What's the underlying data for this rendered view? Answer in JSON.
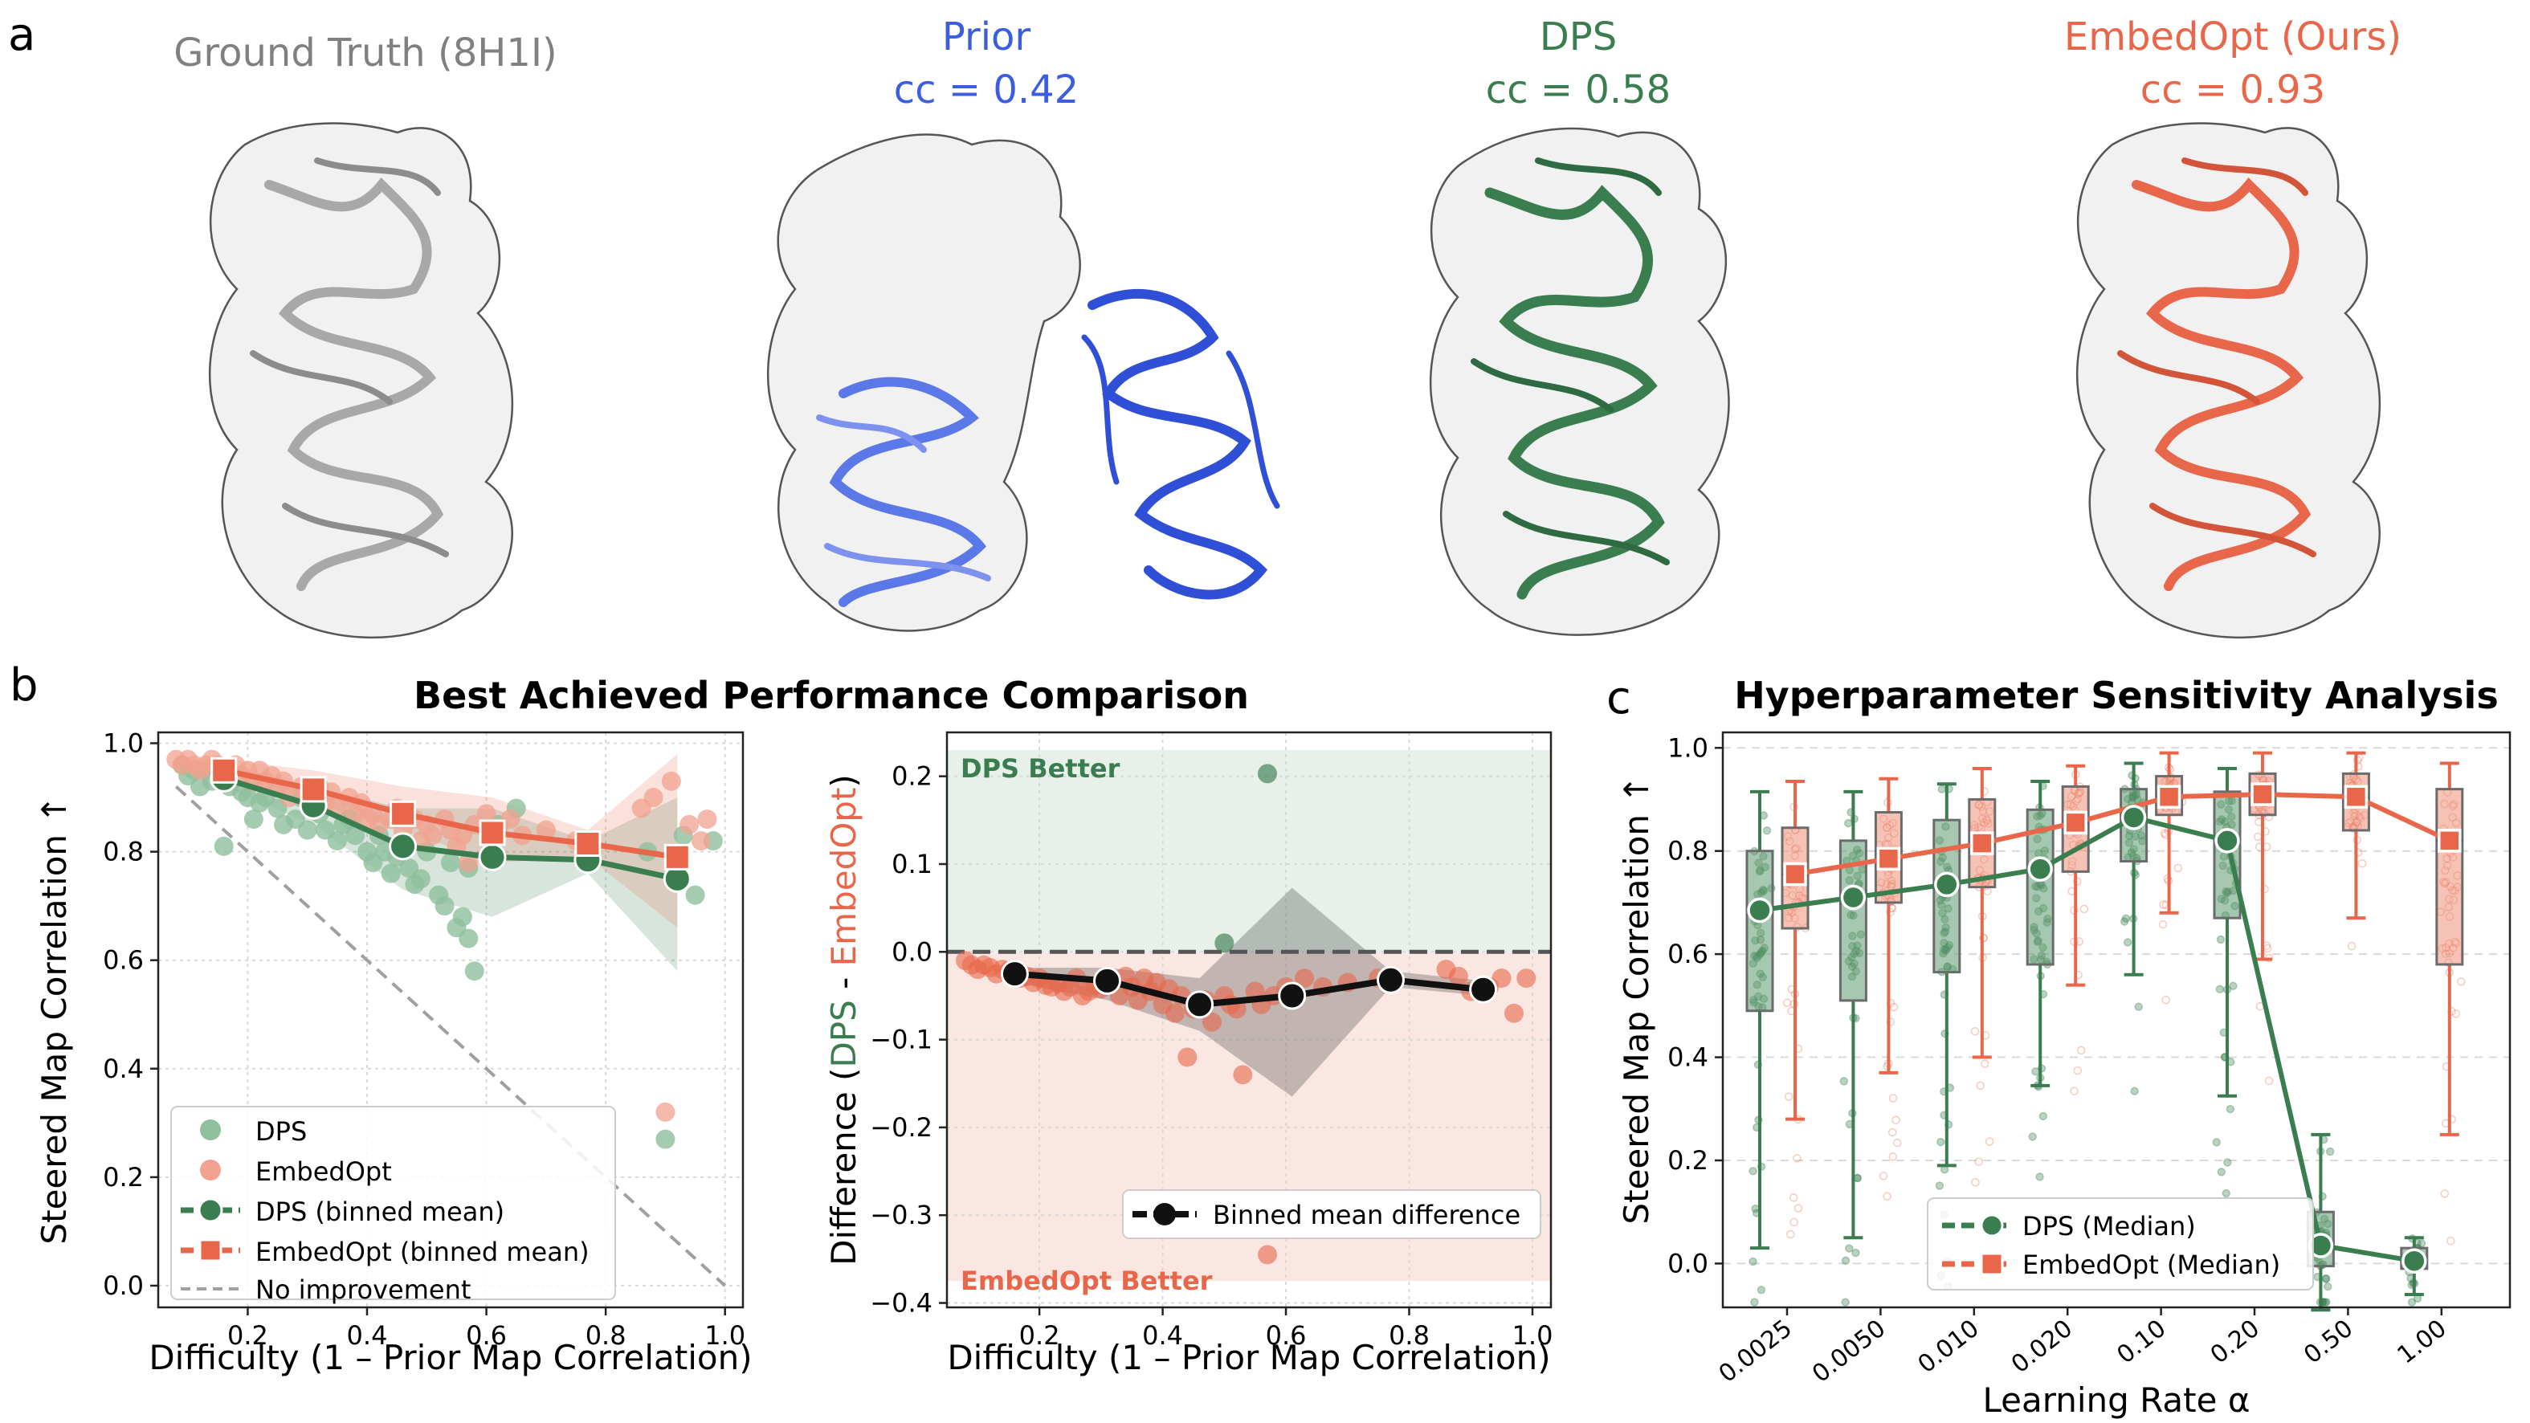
{
  "panel_labels": {
    "a": "a",
    "b": "b",
    "c": "c"
  },
  "colors": {
    "gt": "#808080",
    "prior": "#3b5ee0",
    "dps": "#3a7d4f",
    "embedopt": "#e8674a",
    "dps_light": "#8fbf9c",
    "embedopt_light": "#f2a28f",
    "grid": "#d9d9d9"
  },
  "structures": [
    {
      "title": "Ground Truth (8H1I)",
      "subtitle": "",
      "color": "#808080",
      "icon": "protein-ribbon-gray"
    },
    {
      "title": "Prior",
      "subtitle": "cc = 0.42",
      "color": "#3b5ee0",
      "icon": "protein-ribbon-blue"
    },
    {
      "title": "DPS",
      "subtitle": "cc = 0.58",
      "color": "#3a7d4f",
      "icon": "protein-ribbon-green"
    },
    {
      "title": "EmbedOpt (Ours)",
      "subtitle": "cc = 0.93",
      "color": "#e8674a",
      "icon": "protein-ribbon-orange"
    }
  ],
  "chart_data": [
    {
      "id": "b1",
      "type": "scatter",
      "title": "Best Achieved Performance Comparison",
      "xlabel": "Difficulty (1 – Prior Map Correlation)",
      "ylabel": "Steered Map Correlation ↑",
      "xlim": [
        0.05,
        1.03
      ],
      "ylim": [
        -0.04,
        1.02
      ],
      "xticks": [
        "0.2",
        "0.4",
        "0.6",
        "0.8",
        "1.0"
      ],
      "yticks": [
        "0.0",
        "0.2",
        "0.4",
        "0.6",
        "0.8",
        "1.0"
      ],
      "grid": true,
      "legend": [
        "DPS",
        "EmbedOpt",
        "DPS (binned mean)",
        "EmbedOpt (binned mean)",
        "No improvement"
      ],
      "legend_position": "lower-left",
      "bin_x": [
        0.16,
        0.31,
        0.46,
        0.61,
        0.77,
        0.92
      ],
      "dps_mean": [
        0.935,
        0.885,
        0.81,
        0.79,
        0.785,
        0.75
      ],
      "dps_band_low": [
        0.92,
        0.85,
        0.73,
        0.68,
        0.76,
        0.58
      ],
      "dps_band_high": [
        0.96,
        0.92,
        0.88,
        0.88,
        0.82,
        0.9
      ],
      "embedopt_mean": [
        0.95,
        0.915,
        0.87,
        0.835,
        0.815,
        0.79
      ],
      "embedopt_band_low": [
        0.94,
        0.89,
        0.84,
        0.78,
        0.79,
        0.66
      ],
      "embedopt_band_high": [
        0.97,
        0.95,
        0.92,
        0.9,
        0.84,
        0.98
      ],
      "dps_points": [
        [
          0.09,
          0.96
        ],
        [
          0.1,
          0.94
        ],
        [
          0.11,
          0.95
        ],
        [
          0.12,
          0.92
        ],
        [
          0.13,
          0.95
        ],
        [
          0.14,
          0.93
        ],
        [
          0.15,
          0.94
        ],
        [
          0.17,
          0.92
        ],
        [
          0.19,
          0.91
        ],
        [
          0.2,
          0.9
        ],
        [
          0.21,
          0.86
        ],
        [
          0.22,
          0.89
        ],
        [
          0.23,
          0.9
        ],
        [
          0.25,
          0.88
        ],
        [
          0.26,
          0.85
        ],
        [
          0.28,
          0.86
        ],
        [
          0.29,
          0.9
        ],
        [
          0.3,
          0.84
        ],
        [
          0.32,
          0.87
        ],
        [
          0.33,
          0.84
        ],
        [
          0.35,
          0.82
        ],
        [
          0.36,
          0.85
        ],
        [
          0.37,
          0.86
        ],
        [
          0.38,
          0.83
        ],
        [
          0.4,
          0.8
        ],
        [
          0.41,
          0.78
        ],
        [
          0.42,
          0.83
        ],
        [
          0.43,
          0.8
        ],
        [
          0.44,
          0.76
        ],
        [
          0.45,
          0.79
        ],
        [
          0.47,
          0.77
        ],
        [
          0.48,
          0.74
        ],
        [
          0.49,
          0.75
        ],
        [
          0.5,
          0.8
        ],
        [
          0.52,
          0.72
        ],
        [
          0.53,
          0.7
        ],
        [
          0.54,
          0.78
        ],
        [
          0.55,
          0.66
        ],
        [
          0.56,
          0.68
        ],
        [
          0.57,
          0.64
        ],
        [
          0.58,
          0.58
        ],
        [
          0.57,
          0.77
        ],
        [
          0.6,
          0.84
        ],
        [
          0.62,
          0.85
        ],
        [
          0.65,
          0.88
        ],
        [
          0.87,
          0.8
        ],
        [
          0.9,
          0.27
        ],
        [
          0.93,
          0.83
        ],
        [
          0.95,
          0.72
        ],
        [
          0.98,
          0.82
        ],
        [
          0.16,
          0.81
        ]
      ],
      "embedopt_points": [
        [
          0.08,
          0.97
        ],
        [
          0.09,
          0.96
        ],
        [
          0.1,
          0.97
        ],
        [
          0.11,
          0.96
        ],
        [
          0.12,
          0.95
        ],
        [
          0.13,
          0.96
        ],
        [
          0.14,
          0.97
        ],
        [
          0.15,
          0.96
        ],
        [
          0.17,
          0.95
        ],
        [
          0.18,
          0.96
        ],
        [
          0.19,
          0.94
        ],
        [
          0.2,
          0.95
        ],
        [
          0.21,
          0.93
        ],
        [
          0.22,
          0.95
        ],
        [
          0.23,
          0.93
        ],
        [
          0.24,
          0.94
        ],
        [
          0.25,
          0.92
        ],
        [
          0.26,
          0.93
        ],
        [
          0.27,
          0.9
        ],
        [
          0.29,
          0.92
        ],
        [
          0.3,
          0.9
        ],
        [
          0.32,
          0.92
        ],
        [
          0.33,
          0.89
        ],
        [
          0.34,
          0.91
        ],
        [
          0.35,
          0.88
        ],
        [
          0.37,
          0.9
        ],
        [
          0.38,
          0.87
        ],
        [
          0.39,
          0.89
        ],
        [
          0.4,
          0.86
        ],
        [
          0.41,
          0.87
        ],
        [
          0.42,
          0.85
        ],
        [
          0.44,
          0.86
        ],
        [
          0.45,
          0.88
        ],
        [
          0.46,
          0.84
        ],
        [
          0.48,
          0.86
        ],
        [
          0.49,
          0.82
        ],
        [
          0.5,
          0.85
        ],
        [
          0.51,
          0.83
        ],
        [
          0.53,
          0.86
        ],
        [
          0.54,
          0.84
        ],
        [
          0.55,
          0.81
        ],
        [
          0.56,
          0.83
        ],
        [
          0.57,
          0.78
        ],
        [
          0.58,
          0.85
        ],
        [
          0.6,
          0.87
        ],
        [
          0.62,
          0.84
        ],
        [
          0.64,
          0.86
        ],
        [
          0.66,
          0.83
        ],
        [
          0.7,
          0.84
        ],
        [
          0.75,
          0.82
        ],
        [
          0.86,
          0.88
        ],
        [
          0.88,
          0.9
        ],
        [
          0.9,
          0.32
        ],
        [
          0.91,
          0.93
        ],
        [
          0.94,
          0.85
        ],
        [
          0.96,
          0.82
        ],
        [
          0.97,
          0.86
        ]
      ]
    },
    {
      "id": "b2",
      "type": "scatter",
      "xlabel": "Difficulty (1 – Prior Map Correlation)",
      "ylabel_parts": [
        "Difference (",
        "DPS",
        " - ",
        "EmbedOpt",
        ")"
      ],
      "xlim": [
        0.05,
        1.03
      ],
      "ylim": [
        -0.405,
        0.25
      ],
      "xticks": [
        "0.2",
        "0.4",
        "0.6",
        "0.8",
        "1.0"
      ],
      "yticks": [
        "0.2",
        "0.1",
        "0.0",
        "−0.1",
        "−0.2",
        "−0.3",
        "−0.4"
      ],
      "region_labels": {
        "top": "DPS Better",
        "bottom": "EmbedOpt Better"
      },
      "region_top": [
        0,
        0.23
      ],
      "region_bottom": [
        -0.375,
        0
      ],
      "legend": [
        "Binned mean difference"
      ],
      "legend_position": "lower-right",
      "bin_x": [
        0.16,
        0.31,
        0.46,
        0.61,
        0.77,
        0.92
      ],
      "mean_diff": [
        -0.025,
        -0.033,
        -0.06,
        -0.05,
        -0.032,
        -0.043
      ],
      "band_low": [
        -0.035,
        -0.055,
        -0.09,
        -0.165,
        -0.04,
        -0.05
      ],
      "band_high": [
        -0.018,
        -0.018,
        -0.03,
        0.073,
        -0.022,
        -0.033
      ],
      "points_embed": [
        [
          0.08,
          -0.01
        ],
        [
          0.09,
          -0.015
        ],
        [
          0.1,
          -0.02
        ],
        [
          0.11,
          -0.015
        ],
        [
          0.12,
          -0.018
        ],
        [
          0.13,
          -0.025
        ],
        [
          0.14,
          -0.02
        ],
        [
          0.15,
          -0.022
        ],
        [
          0.17,
          -0.03
        ],
        [
          0.18,
          -0.028
        ],
        [
          0.19,
          -0.035
        ],
        [
          0.2,
          -0.03
        ],
        [
          0.21,
          -0.038
        ],
        [
          0.22,
          -0.04
        ],
        [
          0.23,
          -0.036
        ],
        [
          0.24,
          -0.045
        ],
        [
          0.25,
          -0.04
        ],
        [
          0.26,
          -0.03
        ],
        [
          0.27,
          -0.05
        ],
        [
          0.28,
          -0.045
        ],
        [
          0.29,
          -0.038
        ],
        [
          0.3,
          -0.042
        ],
        [
          0.32,
          -0.035
        ],
        [
          0.33,
          -0.05
        ],
        [
          0.34,
          -0.028
        ],
        [
          0.35,
          -0.04
        ],
        [
          0.36,
          -0.055
        ],
        [
          0.37,
          -0.03
        ],
        [
          0.38,
          -0.045
        ],
        [
          0.39,
          -0.035
        ],
        [
          0.4,
          -0.06
        ],
        [
          0.41,
          -0.042
        ],
        [
          0.42,
          -0.07
        ],
        [
          0.43,
          -0.05
        ],
        [
          0.44,
          -0.12
        ],
        [
          0.45,
          -0.065
        ],
        [
          0.47,
          -0.055
        ],
        [
          0.48,
          -0.08
        ],
        [
          0.5,
          -0.05
        ],
        [
          0.51,
          -0.06
        ],
        [
          0.52,
          -0.065
        ],
        [
          0.53,
          -0.14
        ],
        [
          0.55,
          -0.045
        ],
        [
          0.56,
          -0.06
        ],
        [
          0.58,
          -0.05
        ],
        [
          0.6,
          -0.04
        ],
        [
          0.63,
          -0.03
        ],
        [
          0.66,
          -0.04
        ],
        [
          0.7,
          -0.035
        ],
        [
          0.75,
          -0.03
        ],
        [
          0.86,
          -0.02
        ],
        [
          0.88,
          -0.028
        ],
        [
          0.9,
          -0.045
        ],
        [
          0.93,
          -0.04
        ],
        [
          0.95,
          -0.03
        ],
        [
          0.97,
          -0.07
        ],
        [
          0.99,
          -0.03
        ],
        [
          0.57,
          -0.345
        ]
      ],
      "points_dps": [
        [
          0.57,
          0.203
        ],
        [
          0.5,
          0.01
        ]
      ]
    },
    {
      "id": "c",
      "type": "box",
      "title": "Hyperparameter Sensitivity Analysis",
      "xlabel": "Learning Rate α",
      "ylabel": "Steered Map Correlation ↑",
      "ylim": [
        -0.085,
        1.03
      ],
      "yticks": [
        "0.0",
        "0.2",
        "0.4",
        "0.6",
        "0.8",
        "1.0"
      ],
      "categories": [
        "0.0025",
        "0.0050",
        "0.010",
        "0.020",
        "0.10",
        "0.20",
        "0.50",
        "1.00"
      ],
      "legend": [
        "DPS (Median)",
        "EmbedOpt (Median)"
      ],
      "legend_position": "lower-center",
      "grid": true,
      "dps_median": [
        0.685,
        0.71,
        0.735,
        0.765,
        0.865,
        0.82,
        0.035,
        0.005
      ],
      "dps_q1": [
        0.49,
        0.51,
        0.565,
        0.58,
        0.78,
        0.67,
        -0.005,
        -0.01
      ],
      "dps_q3": [
        0.8,
        0.82,
        0.86,
        0.88,
        0.92,
        0.915,
        0.1,
        0.03
      ],
      "dps_wlo": [
        0.03,
        0.05,
        0.19,
        0.345,
        0.56,
        0.325,
        -0.09,
        -0.06
      ],
      "dps_whi": [
        0.915,
        0.915,
        0.93,
        0.935,
        0.97,
        0.96,
        0.25,
        0.05
      ],
      "embedopt_median": [
        0.755,
        0.785,
        0.815,
        0.855,
        0.905,
        0.91,
        0.905,
        0.82
      ],
      "embedopt_q1": [
        0.65,
        0.7,
        0.73,
        0.76,
        0.87,
        0.87,
        0.84,
        0.58
      ],
      "embedopt_q3": [
        0.845,
        0.875,
        0.9,
        0.925,
        0.945,
        0.95,
        0.95,
        0.92
      ],
      "embedopt_wlo": [
        0.28,
        0.37,
        0.4,
        0.54,
        0.68,
        0.59,
        0.67,
        0.25
      ],
      "embedopt_whi": [
        0.935,
        0.94,
        0.96,
        0.965,
        0.99,
        0.99,
        0.99,
        0.97
      ]
    }
  ]
}
